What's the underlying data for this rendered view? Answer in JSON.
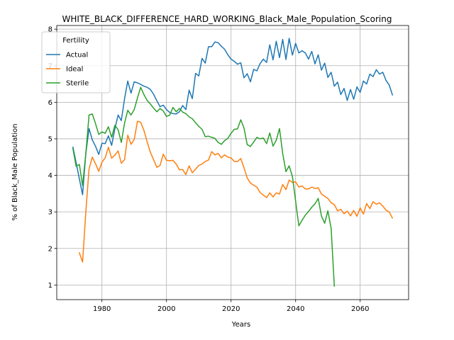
{
  "chart_data": {
    "type": "line",
    "title": "WHITE_BLACK_DIFFERENCE_HARD_WORKING_Black_Male_Population_Scoring",
    "xlabel": "Years",
    "ylabel": "% of Black_Male Population",
    "xlim": [
      1966,
      2075
    ],
    "ylim": [
      0.6,
      8.1
    ],
    "xticks": [
      1980,
      2000,
      2020,
      2040,
      2060
    ],
    "yticks": [
      1,
      2,
      3,
      4,
      5,
      6,
      7,
      8
    ],
    "grid": true,
    "legend": {
      "title": "Fertility",
      "position": "upper-left"
    },
    "series": [
      {
        "name": "Actual",
        "color": "#1f77b4",
        "points": [
          [
            1971,
            4.77
          ],
          [
            1972,
            4.35
          ],
          [
            1973,
            3.9
          ],
          [
            1974,
            3.47
          ],
          [
            1975,
            4.6
          ],
          [
            1976,
            5.28
          ],
          [
            1977,
            4.97
          ],
          [
            1978,
            4.8
          ],
          [
            1979,
            4.57
          ],
          [
            1980,
            4.88
          ],
          [
            1981,
            4.87
          ],
          [
            1982,
            5.08
          ],
          [
            1983,
            4.82
          ],
          [
            1984,
            5.27
          ],
          [
            1985,
            5.65
          ],
          [
            1986,
            5.5
          ],
          [
            1987,
            6.1
          ],
          [
            1988,
            6.58
          ],
          [
            1989,
            6.25
          ],
          [
            1990,
            6.56
          ],
          [
            1991,
            6.53
          ],
          [
            1992,
            6.49
          ],
          [
            1993,
            6.44
          ],
          [
            1994,
            6.41
          ],
          [
            1995,
            6.35
          ],
          [
            1996,
            6.22
          ],
          [
            1997,
            6.04
          ],
          [
            1998,
            5.88
          ],
          [
            1999,
            5.92
          ],
          [
            2000,
            5.8
          ],
          [
            2001,
            5.72
          ],
          [
            2002,
            5.69
          ],
          [
            2003,
            5.68
          ],
          [
            2004,
            5.74
          ],
          [
            2005,
            5.91
          ],
          [
            2006,
            5.8
          ],
          [
            2007,
            6.33
          ],
          [
            2008,
            6.1
          ],
          [
            2009,
            6.79
          ],
          [
            2010,
            6.72
          ],
          [
            2011,
            7.2
          ],
          [
            2012,
            7.07
          ],
          [
            2013,
            7.52
          ],
          [
            2014,
            7.52
          ],
          [
            2015,
            7.65
          ],
          [
            2016,
            7.63
          ],
          [
            2017,
            7.53
          ],
          [
            2018,
            7.45
          ],
          [
            2019,
            7.3
          ],
          [
            2020,
            7.18
          ],
          [
            2021,
            7.12
          ],
          [
            2022,
            7.04
          ],
          [
            2023,
            7.08
          ],
          [
            2024,
            6.67
          ],
          [
            2025,
            6.78
          ],
          [
            2026,
            6.56
          ],
          [
            2027,
            6.9
          ],
          [
            2028,
            6.86
          ],
          [
            2029,
            7.06
          ],
          [
            2030,
            7.18
          ],
          [
            2031,
            7.09
          ],
          [
            2032,
            7.57
          ],
          [
            2033,
            7.16
          ],
          [
            2034,
            7.67
          ],
          [
            2035,
            7.22
          ],
          [
            2036,
            7.72
          ],
          [
            2037,
            7.17
          ],
          [
            2038,
            7.75
          ],
          [
            2039,
            7.29
          ],
          [
            2040,
            7.61
          ],
          [
            2041,
            7.35
          ],
          [
            2042,
            7.41
          ],
          [
            2043,
            7.35
          ],
          [
            2044,
            7.18
          ],
          [
            2045,
            7.39
          ],
          [
            2046,
            7.05
          ],
          [
            2047,
            7.3
          ],
          [
            2048,
            6.88
          ],
          [
            2049,
            7.07
          ],
          [
            2050,
            6.68
          ],
          [
            2051,
            6.82
          ],
          [
            2052,
            6.44
          ],
          [
            2053,
            6.55
          ],
          [
            2054,
            6.21
          ],
          [
            2055,
            6.38
          ],
          [
            2056,
            6.05
          ],
          [
            2057,
            6.35
          ],
          [
            2058,
            6.08
          ],
          [
            2059,
            6.42
          ],
          [
            2060,
            6.27
          ],
          [
            2061,
            6.58
          ],
          [
            2062,
            6.5
          ],
          [
            2063,
            6.77
          ],
          [
            2064,
            6.7
          ],
          [
            2065,
            6.89
          ],
          [
            2066,
            6.77
          ],
          [
            2067,
            6.82
          ],
          [
            2068,
            6.6
          ],
          [
            2069,
            6.47
          ],
          [
            2070,
            6.2
          ]
        ]
      },
      {
        "name": "Ideal",
        "color": "#ff7f0e",
        "points": [
          [
            1973,
            1.88
          ],
          [
            1974,
            1.63
          ],
          [
            1975,
            3.0
          ],
          [
            1976,
            4.17
          ],
          [
            1977,
            4.5
          ],
          [
            1978,
            4.32
          ],
          [
            1979,
            4.11
          ],
          [
            1980,
            4.36
          ],
          [
            1981,
            4.48
          ],
          [
            1982,
            4.77
          ],
          [
            1983,
            4.47
          ],
          [
            1984,
            4.55
          ],
          [
            1985,
            4.67
          ],
          [
            1986,
            4.33
          ],
          [
            1987,
            4.43
          ],
          [
            1988,
            5.1
          ],
          [
            1989,
            4.85
          ],
          [
            1990,
            4.98
          ],
          [
            1991,
            5.48
          ],
          [
            1992,
            5.45
          ],
          [
            1993,
            5.23
          ],
          [
            1994,
            4.92
          ],
          [
            1995,
            4.63
          ],
          [
            1996,
            4.43
          ],
          [
            1997,
            4.22
          ],
          [
            1998,
            4.27
          ],
          [
            1999,
            4.58
          ],
          [
            2000,
            4.41
          ],
          [
            2001,
            4.4
          ],
          [
            2002,
            4.41
          ],
          [
            2003,
            4.31
          ],
          [
            2004,
            4.15
          ],
          [
            2005,
            4.16
          ],
          [
            2006,
            4.02
          ],
          [
            2007,
            4.26
          ],
          [
            2008,
            4.07
          ],
          [
            2009,
            4.17
          ],
          [
            2010,
            4.27
          ],
          [
            2011,
            4.31
          ],
          [
            2012,
            4.38
          ],
          [
            2013,
            4.42
          ],
          [
            2014,
            4.65
          ],
          [
            2015,
            4.56
          ],
          [
            2016,
            4.6
          ],
          [
            2017,
            4.48
          ],
          [
            2018,
            4.56
          ],
          [
            2019,
            4.5
          ],
          [
            2020,
            4.48
          ],
          [
            2021,
            4.38
          ],
          [
            2022,
            4.38
          ],
          [
            2023,
            4.46
          ],
          [
            2024,
            4.21
          ],
          [
            2025,
            3.93
          ],
          [
            2026,
            3.79
          ],
          [
            2027,
            3.73
          ],
          [
            2028,
            3.68
          ],
          [
            2029,
            3.53
          ],
          [
            2030,
            3.46
          ],
          [
            2031,
            3.39
          ],
          [
            2032,
            3.52
          ],
          [
            2033,
            3.41
          ],
          [
            2034,
            3.52
          ],
          [
            2035,
            3.49
          ],
          [
            2036,
            3.75
          ],
          [
            2037,
            3.61
          ],
          [
            2038,
            3.87
          ],
          [
            2039,
            3.81
          ],
          [
            2040,
            3.82
          ],
          [
            2041,
            3.68
          ],
          [
            2042,
            3.71
          ],
          [
            2043,
            3.63
          ],
          [
            2044,
            3.63
          ],
          [
            2045,
            3.68
          ],
          [
            2046,
            3.64
          ],
          [
            2047,
            3.66
          ],
          [
            2048,
            3.49
          ],
          [
            2049,
            3.43
          ],
          [
            2050,
            3.37
          ],
          [
            2051,
            3.25
          ],
          [
            2052,
            3.2
          ],
          [
            2053,
            3.03
          ],
          [
            2054,
            3.07
          ],
          [
            2055,
            2.95
          ],
          [
            2056,
            3.02
          ],
          [
            2057,
            2.89
          ],
          [
            2058,
            3.04
          ],
          [
            2059,
            2.88
          ],
          [
            2060,
            3.11
          ],
          [
            2061,
            2.94
          ],
          [
            2062,
            3.23
          ],
          [
            2063,
            3.09
          ],
          [
            2064,
            3.28
          ],
          [
            2065,
            3.21
          ],
          [
            2066,
            3.25
          ],
          [
            2067,
            3.16
          ],
          [
            2068,
            3.05
          ],
          [
            2069,
            3.0
          ],
          [
            2070,
            2.83
          ]
        ]
      },
      {
        "name": "Sterile",
        "color": "#2ca02c",
        "points": [
          [
            1971,
            4.73
          ],
          [
            1972,
            4.25
          ],
          [
            1973,
            4.3
          ],
          [
            1974,
            3.72
          ],
          [
            1975,
            4.6
          ],
          [
            1976,
            5.65
          ],
          [
            1977,
            5.68
          ],
          [
            1978,
            5.42
          ],
          [
            1979,
            5.12
          ],
          [
            1980,
            5.19
          ],
          [
            1981,
            5.15
          ],
          [
            1982,
            5.33
          ],
          [
            1983,
            5.04
          ],
          [
            1984,
            5.37
          ],
          [
            1985,
            5.25
          ],
          [
            1986,
            4.9
          ],
          [
            1987,
            5.43
          ],
          [
            1988,
            5.78
          ],
          [
            1989,
            5.65
          ],
          [
            1990,
            5.8
          ],
          [
            1991,
            6.12
          ],
          [
            1992,
            6.41
          ],
          [
            1993,
            6.21
          ],
          [
            1994,
            6.05
          ],
          [
            1995,
            5.95
          ],
          [
            1996,
            5.84
          ],
          [
            1997,
            5.74
          ],
          [
            1998,
            5.83
          ],
          [
            1999,
            5.76
          ],
          [
            2000,
            5.61
          ],
          [
            2001,
            5.65
          ],
          [
            2002,
            5.86
          ],
          [
            2003,
            5.74
          ],
          [
            2004,
            5.83
          ],
          [
            2005,
            5.73
          ],
          [
            2006,
            5.69
          ],
          [
            2007,
            5.6
          ],
          [
            2008,
            5.55
          ],
          [
            2009,
            5.44
          ],
          [
            2010,
            5.34
          ],
          [
            2011,
            5.26
          ],
          [
            2012,
            5.06
          ],
          [
            2013,
            5.07
          ],
          [
            2014,
            5.04
          ],
          [
            2015,
            5.01
          ],
          [
            2016,
            4.9
          ],
          [
            2017,
            4.85
          ],
          [
            2018,
            4.95
          ],
          [
            2019,
            5.01
          ],
          [
            2020,
            5.15
          ],
          [
            2021,
            5.26
          ],
          [
            2022,
            5.27
          ],
          [
            2023,
            5.52
          ],
          [
            2024,
            5.3
          ],
          [
            2025,
            4.84
          ],
          [
            2026,
            4.79
          ],
          [
            2027,
            4.91
          ],
          [
            2028,
            5.04
          ],
          [
            2029,
            5.0
          ],
          [
            2030,
            5.02
          ],
          [
            2031,
            4.87
          ],
          [
            2032,
            5.16
          ],
          [
            2033,
            4.8
          ],
          [
            2034,
            4.96
          ],
          [
            2035,
            5.28
          ],
          [
            2036,
            4.6
          ],
          [
            2037,
            4.1
          ],
          [
            2038,
            4.26
          ],
          [
            2039,
            3.97
          ],
          [
            2040,
            3.3
          ],
          [
            2041,
            2.62
          ],
          [
            2042,
            2.77
          ],
          [
            2043,
            2.91
          ],
          [
            2044,
            3.01
          ],
          [
            2045,
            3.13
          ],
          [
            2046,
            3.22
          ],
          [
            2047,
            3.37
          ],
          [
            2048,
            2.89
          ],
          [
            2049,
            2.69
          ],
          [
            2050,
            3.03
          ],
          [
            2051,
            2.55
          ],
          [
            2052,
            0.97
          ]
        ]
      }
    ]
  }
}
